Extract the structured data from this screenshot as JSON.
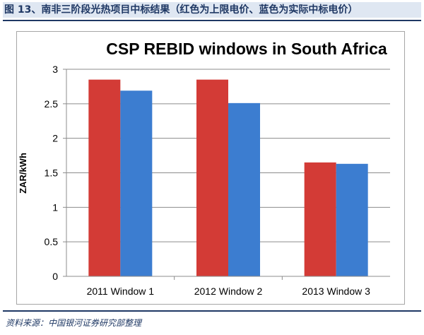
{
  "figure": {
    "caption": "图 13、南非三阶段光热项目中标结果（红色为上限电价、蓝色为实际中标电价）",
    "source": "资料来源：中国银河证券研究部整理"
  },
  "chart_data": {
    "type": "bar",
    "title": "CSP REBID windows in South Africa",
    "xlabel": "",
    "ylabel": "ZAR/kWh",
    "categories": [
      "2011 Window 1",
      "2012 Window 2",
      "2013 Window 3"
    ],
    "series": [
      {
        "color": "#d33b36",
        "values": [
          2.85,
          2.85,
          1.65
        ]
      },
      {
        "color": "#3c7dd0",
        "values": [
          2.69,
          2.51,
          1.63
        ]
      }
    ],
    "ylim": [
      0,
      3
    ],
    "yticks": [
      "0",
      "0.5",
      "1",
      "1.5",
      "2",
      "2.5",
      "3"
    ],
    "grid": true,
    "legend": "none"
  }
}
